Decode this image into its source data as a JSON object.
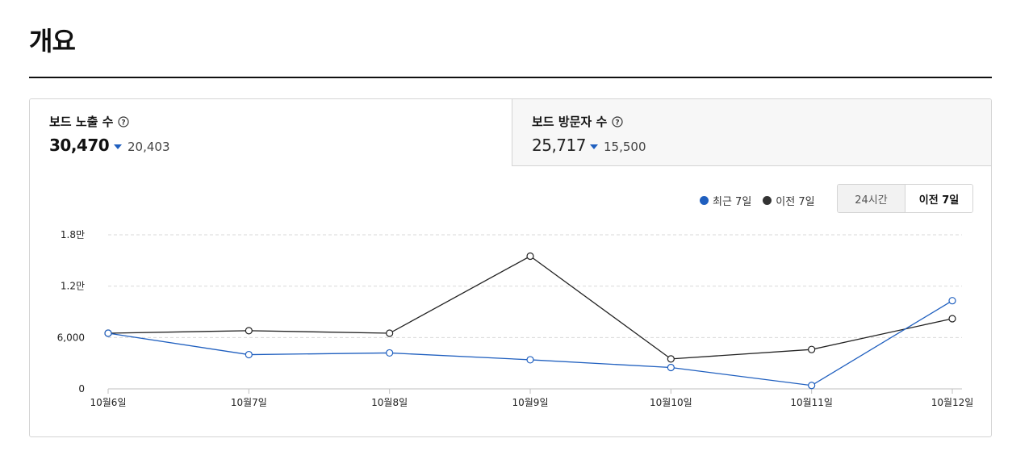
{
  "page": {
    "title": "개요"
  },
  "metrics": [
    {
      "label": "보드 노출 수",
      "value": "30,470",
      "compare": "20,403",
      "icon": "help-icon"
    },
    {
      "label": "보드 방문자 수",
      "value": "25,717",
      "compare": "15,500",
      "icon": "help-icon"
    }
  ],
  "legend": {
    "recent": "최근 7일",
    "previous": "이전 7일"
  },
  "range_toggle": {
    "options": [
      "24시간",
      "이전 7일"
    ],
    "selected": "이전 7일"
  },
  "colors": {
    "recent": "#1f5fbf",
    "previous": "#222222",
    "down_arrow": "#1f5fbf"
  },
  "chart_data": {
    "type": "line",
    "categories": [
      "10월6일",
      "10월7일",
      "10월8일",
      "10월9일",
      "10월10일",
      "10월11일",
      "10월12일"
    ],
    "series": [
      {
        "name": "최근 7일",
        "values": [
          6500,
          4000,
          4200,
          3400,
          2500,
          400,
          10300
        ]
      },
      {
        "name": "이전 7일",
        "values": [
          6500,
          6800,
          6500,
          15500,
          3500,
          4600,
          8200
        ]
      }
    ],
    "y_ticks": [
      0,
      6000,
      12000,
      18000
    ],
    "y_tick_labels": [
      "0",
      "6,000",
      "1.2만",
      "1.8만"
    ],
    "ylim": [
      0,
      18000
    ],
    "grid": true,
    "legend_position": "top-right"
  }
}
